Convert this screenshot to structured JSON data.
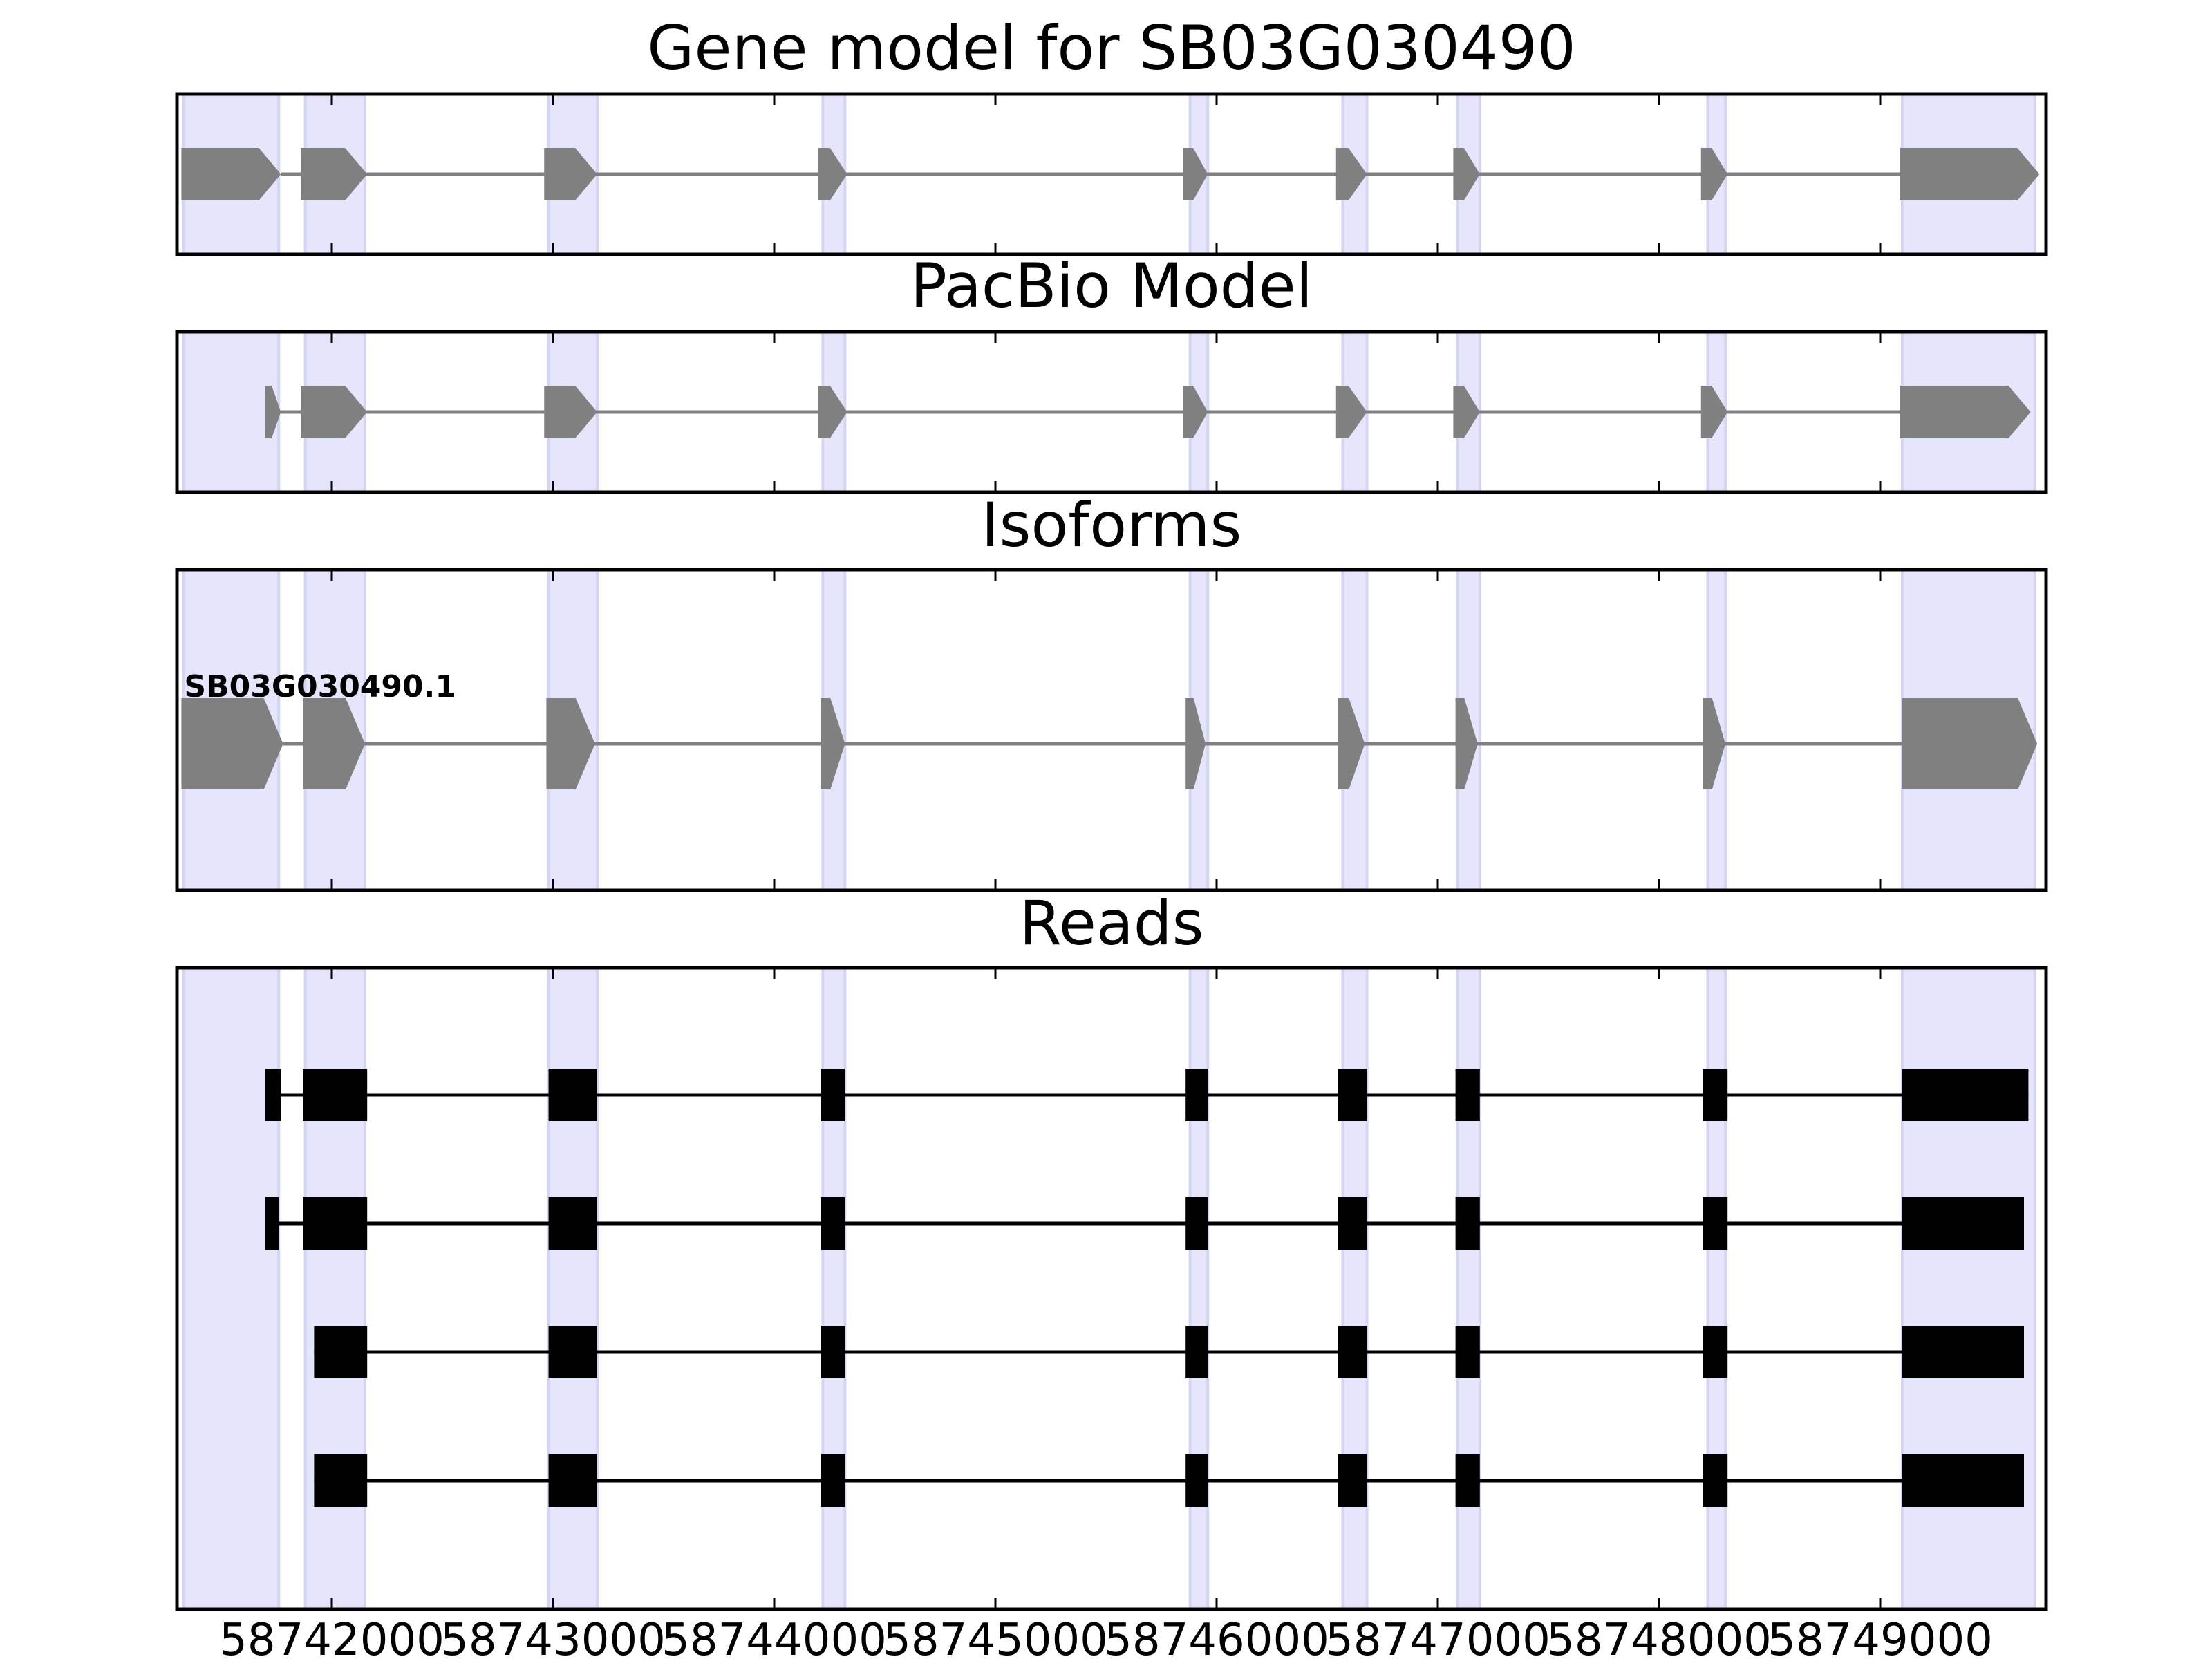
{
  "chart_data": {
    "type": "gene_model",
    "x_range": [
      58741300,
      58749750
    ],
    "x_ticks": [
      {
        "value": 58742000,
        "label": "58742000"
      },
      {
        "value": 58743000,
        "label": "58743000"
      },
      {
        "value": 58744000,
        "label": "58744000"
      },
      {
        "value": 58745000,
        "label": "58745000"
      },
      {
        "value": 58746000,
        "label": "58746000"
      },
      {
        "value": 58747000,
        "label": "58747000"
      },
      {
        "value": 58748000,
        "label": "58748000"
      },
      {
        "value": 58749000,
        "label": "58749000"
      }
    ],
    "shaded_regions": [
      [
        58741330,
        58741760
      ],
      [
        58741880,
        58742150
      ],
      [
        58742980,
        58743200
      ],
      [
        58744220,
        58744320
      ],
      [
        58745880,
        58745960
      ],
      [
        58746570,
        58746680
      ],
      [
        58747090,
        58747190
      ],
      [
        58748220,
        58748300
      ],
      [
        58749100,
        58749700
      ]
    ],
    "colors": {
      "shade": "#e5e5fb",
      "gene": "#808080",
      "read": "#000000",
      "intron": "#808080"
    },
    "panels": [
      {
        "title": "Gene model for SB03G030490",
        "kind": "gene",
        "exons": [
          [
            58741320,
            58741770
          ],
          [
            58741860,
            58742160
          ],
          [
            58742960,
            58743200
          ],
          [
            58744200,
            58744330
          ],
          [
            58745850,
            58745960
          ],
          [
            58746540,
            58746680
          ],
          [
            58747070,
            58747190
          ],
          [
            58748190,
            58748310
          ],
          [
            58749090,
            58749720
          ]
        ]
      },
      {
        "title": "PacBio Model",
        "kind": "gene",
        "exons": [
          [
            58741700,
            58741770
          ],
          [
            58741860,
            58742160
          ],
          [
            58742960,
            58743200
          ],
          [
            58744200,
            58744330
          ],
          [
            58745850,
            58745960
          ],
          [
            58746540,
            58746680
          ],
          [
            58747070,
            58747190
          ],
          [
            58748190,
            58748310
          ],
          [
            58749090,
            58749680
          ]
        ]
      },
      {
        "title": "Isoforms",
        "kind": "isoform",
        "label": "SB03G030490.1",
        "exons": [
          [
            58741320,
            58741780
          ],
          [
            58741870,
            58742150
          ],
          [
            58742970,
            58743190
          ],
          [
            58744210,
            58744320
          ],
          [
            58745860,
            58745950
          ],
          [
            58746550,
            58746670
          ],
          [
            58747080,
            58747180
          ],
          [
            58748200,
            58748300
          ],
          [
            58749100,
            58749710
          ]
        ]
      },
      {
        "title": "Reads",
        "kind": "reads",
        "reads": [
          {
            "exons": [
              [
                58741700,
                58741770
              ],
              [
                58741870,
                58742160
              ],
              [
                58742980,
                58743200
              ],
              [
                58744210,
                58744320
              ],
              [
                58745860,
                58745960
              ],
              [
                58746550,
                58746680
              ],
              [
                58747080,
                58747190
              ],
              [
                58748200,
                58748310
              ],
              [
                58749100,
                58749670
              ]
            ]
          },
          {
            "exons": [
              [
                58741700,
                58741760
              ],
              [
                58741870,
                58742160
              ],
              [
                58742980,
                58743200
              ],
              [
                58744210,
                58744320
              ],
              [
                58745860,
                58745960
              ],
              [
                58746550,
                58746680
              ],
              [
                58747080,
                58747190
              ],
              [
                58748200,
                58748310
              ],
              [
                58749100,
                58749650
              ]
            ]
          },
          {
            "exons": [
              [
                58741920,
                58742160
              ],
              [
                58742980,
                58743200
              ],
              [
                58744210,
                58744320
              ],
              [
                58745860,
                58745960
              ],
              [
                58746550,
                58746680
              ],
              [
                58747080,
                58747190
              ],
              [
                58748200,
                58748310
              ],
              [
                58749100,
                58749650
              ]
            ]
          },
          {
            "exons": [
              [
                58741920,
                58742160
              ],
              [
                58742980,
                58743200
              ],
              [
                58744210,
                58744320
              ],
              [
                58745860,
                58745960
              ],
              [
                58746550,
                58746680
              ],
              [
                58747080,
                58747190
              ],
              [
                58748200,
                58748310
              ],
              [
                58749100,
                58749650
              ]
            ]
          }
        ]
      }
    ]
  }
}
